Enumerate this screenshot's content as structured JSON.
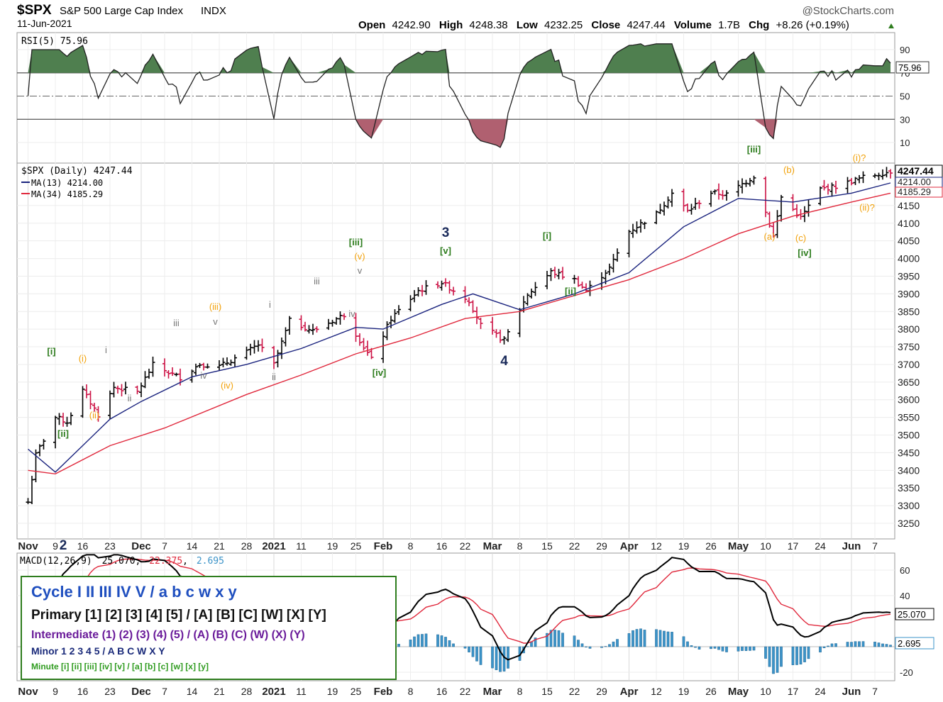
{
  "header": {
    "symbol": "$SPX",
    "name": "S&P 500 Large Cap Index",
    "exchange": "INDX",
    "date": "11-Jun-2021",
    "watermark": "@StockCharts.com",
    "open_label": "Open",
    "open": "4242.90",
    "high_label": "High",
    "high": "4248.38",
    "low_label": "Low",
    "low": "4232.25",
    "close_label": "Close",
    "close": "4247.44",
    "volume_label": "Volume",
    "volume": "1.7B",
    "chg_label": "Chg",
    "chg": "+8.26 (+0.19%)"
  },
  "colors": {
    "up_bar": "#000000",
    "down_bar": "#cc1144",
    "ma13": "#1a237e",
    "ma34": "#e0283c",
    "rsi_fill": "#4f7f4f",
    "macd_hist": "#3b93c8",
    "green_label": "#2e7d1e",
    "gray_label": "#777777",
    "orange_label": "#f2a20c",
    "navy_label": "#1a2a5a"
  },
  "rsi": {
    "label": "RSI(5) 75.96",
    "value": "75.96",
    "levels": [
      "90",
      "70",
      "50",
      "30",
      "10"
    ]
  },
  "price": {
    "label": "$SPX (Daily) 4247.44",
    "ma13_label": "MA(13) 4214.00",
    "ma34_label": "MA(34) 4185.29",
    "tag_close": "4247.44",
    "tag_ma13": "4214.00",
    "tag_ma34": "4185.29",
    "y_ticks": [
      "4150",
      "4100",
      "4050",
      "4000",
      "3950",
      "3900",
      "3850",
      "3800",
      "3750",
      "3700",
      "3650",
      "3600",
      "3550",
      "3500",
      "3450",
      "3400",
      "3350",
      "3300",
      "3250"
    ]
  },
  "x_labels": [
    "Nov",
    "9",
    "16",
    "23",
    "Dec",
    "7",
    "14",
    "21",
    "28",
    "2021",
    "11",
    "19",
    "25",
    "Feb",
    "8",
    "16",
    "22",
    "Mar",
    "8",
    "15",
    "22",
    "29",
    "Apr",
    "12",
    "19",
    "26",
    "May",
    "10",
    "17",
    "24",
    "Jun",
    "7"
  ],
  "macd": {
    "label_name": "MACD(12,26,9)",
    "v1": "25.070",
    "v2": "22.375",
    "v3": "2.695",
    "tag1": "25.070",
    "tag2": "2.695",
    "y_ticks": [
      "60",
      "40",
      "-20"
    ]
  },
  "waves": [
    {
      "t": "2",
      "c": "navy"
    },
    {
      "t": "[i]",
      "c": "green"
    },
    {
      "t": "[ii]",
      "c": "green"
    },
    {
      "t": "(i)",
      "c": "orange"
    },
    {
      "t": "(ii)",
      "c": "orange"
    },
    {
      "t": "i",
      "c": "gray"
    },
    {
      "t": "ii",
      "c": "gray"
    },
    {
      "t": "iii",
      "c": "gray"
    },
    {
      "t": "iv",
      "c": "gray"
    },
    {
      "t": "(iii)",
      "c": "orange"
    },
    {
      "t": "v",
      "c": "gray"
    },
    {
      "t": "(iv)",
      "c": "orange"
    },
    {
      "t": "i",
      "c": "gray"
    },
    {
      "t": "ii",
      "c": "gray"
    },
    {
      "t": "iii",
      "c": "gray"
    },
    {
      "t": "iv",
      "c": "gray"
    },
    {
      "t": "[iii]",
      "c": "green"
    },
    {
      "t": "(v)",
      "c": "orange"
    },
    {
      "t": "v",
      "c": "gray"
    },
    {
      "t": "[iv]",
      "c": "green"
    },
    {
      "t": "3",
      "c": "navy"
    },
    {
      "t": "[v]",
      "c": "green"
    },
    {
      "t": "4",
      "c": "navy"
    },
    {
      "t": "[i]",
      "c": "green"
    },
    {
      "t": "[ii]",
      "c": "green"
    },
    {
      "t": "[iii]",
      "c": "green"
    },
    {
      "t": "(b)",
      "c": "orange"
    },
    {
      "t": "(a)",
      "c": "orange"
    },
    {
      "t": "(c)",
      "c": "orange"
    },
    {
      "t": "[iv]",
      "c": "green"
    },
    {
      "t": "(i)?",
      "c": "orange"
    },
    {
      "t": "(ii)?",
      "c": "orange"
    }
  ],
  "legend": {
    "cycle": "Cycle I II III IV V / a b c w x y",
    "primary": "Primary [1] [2] [3] [4] [5] / [A] [B] [C] [W] [X] [Y]",
    "intermediate": "Intermediate (1) (2) (3) (4) (5) / (A) (B) (C) (W) (X) (Y)",
    "minor": "Minor 1 2 3 4 5 / A B C W X Y",
    "minute": "Minute [i] [ii] [iii] [iv] [v] / [a] [b] [c] [w] [x] [y]"
  },
  "chart_data": {
    "type": "line",
    "title": "$SPX S&P 500 Large Cap Index INDX",
    "x_range": [
      "2020-11-02",
      "2021-06-11"
    ],
    "ylim": [
      3220,
      4270
    ],
    "series": [
      {
        "name": "$SPX (Daily)",
        "points": [
          [
            "2020-11-02",
            3310
          ],
          [
            "2020-11-04",
            3444
          ],
          [
            "2020-11-09",
            3550
          ],
          [
            "2020-11-12",
            3537
          ],
          [
            "2020-11-16",
            3626
          ],
          [
            "2020-11-20",
            3557
          ],
          [
            "2020-11-24",
            3635
          ],
          [
            "2020-11-30",
            3622
          ],
          [
            "2020-12-04",
            3699
          ],
          [
            "2020-12-09",
            3672
          ],
          [
            "2020-12-11",
            3663
          ],
          [
            "2020-12-16",
            3701
          ],
          [
            "2020-12-21",
            3694
          ],
          [
            "2020-12-28",
            3735
          ],
          [
            "2020-12-31",
            3756
          ],
          [
            "2021-01-04",
            3700
          ],
          [
            "2021-01-08",
            3824
          ],
          [
            "2021-01-14",
            3795
          ],
          [
            "2021-01-22",
            3841
          ],
          [
            "2021-01-27",
            3750
          ],
          [
            "2021-01-29",
            3714
          ],
          [
            "2021-02-03",
            3830
          ],
          [
            "2021-02-10",
            3909
          ],
          [
            "2021-02-16",
            3932
          ],
          [
            "2021-02-23",
            3881
          ],
          [
            "2021-02-26",
            3811
          ],
          [
            "2021-03-04",
            3768
          ],
          [
            "2021-03-10",
            3898
          ],
          [
            "2021-03-16",
            3962
          ],
          [
            "2021-03-22",
            3940
          ],
          [
            "2021-03-25",
            3909
          ],
          [
            "2021-03-31",
            3973
          ],
          [
            "2021-04-05",
            4077
          ],
          [
            "2021-04-12",
            4127
          ],
          [
            "2021-04-16",
            4185
          ],
          [
            "2021-04-20",
            4134
          ],
          [
            "2021-04-26",
            4187
          ],
          [
            "2021-04-30",
            4181
          ],
          [
            "2021-05-07",
            4233
          ],
          [
            "2021-05-12",
            4063
          ],
          [
            "2021-05-14",
            4174
          ],
          [
            "2021-05-19",
            4115
          ],
          [
            "2021-05-24",
            4197
          ],
          [
            "2021-05-28",
            4204
          ],
          [
            "2021-06-04",
            4230
          ],
          [
            "2021-06-11",
            4247
          ]
        ]
      },
      {
        "name": "MA(13)",
        "points": [
          [
            "2020-11-02",
            3460
          ],
          [
            "2020-11-09",
            3395
          ],
          [
            "2020-11-16",
            3470
          ],
          [
            "2020-11-23",
            3545
          ],
          [
            "2020-12-01",
            3595
          ],
          [
            "2020-12-14",
            3665
          ],
          [
            "2020-12-28",
            3700
          ],
          [
            "2021-01-11",
            3745
          ],
          [
            "2021-01-25",
            3805
          ],
          [
            "2021-02-01",
            3800
          ],
          [
            "2021-02-16",
            3870
          ],
          [
            "2021-02-24",
            3900
          ],
          [
            "2021-03-08",
            3855
          ],
          [
            "2021-03-22",
            3900
          ],
          [
            "2021-04-05",
            3960
          ],
          [
            "2021-04-19",
            4090
          ],
          [
            "2021-05-03",
            4170
          ],
          [
            "2021-05-17",
            4160
          ],
          [
            "2021-06-01",
            4185
          ],
          [
            "2021-06-11",
            4214
          ]
        ]
      },
      {
        "name": "MA(34)",
        "points": [
          [
            "2020-11-02",
            3400
          ],
          [
            "2020-11-09",
            3390
          ],
          [
            "2020-11-23",
            3470
          ],
          [
            "2020-12-07",
            3520
          ],
          [
            "2020-12-28",
            3615
          ],
          [
            "2021-01-11",
            3670
          ],
          [
            "2021-01-25",
            3730
          ],
          [
            "2021-02-08",
            3775
          ],
          [
            "2021-02-22",
            3830
          ],
          [
            "2021-03-08",
            3850
          ],
          [
            "2021-03-22",
            3895
          ],
          [
            "2021-04-05",
            3940
          ],
          [
            "2021-04-19",
            4000
          ],
          [
            "2021-05-03",
            4070
          ],
          [
            "2021-05-17",
            4120
          ],
          [
            "2021-06-01",
            4160
          ],
          [
            "2021-06-11",
            4185
          ]
        ]
      }
    ],
    "indicators": {
      "rsi5_last": 75.96,
      "macd_last": 25.07,
      "signal_last": 22.375,
      "histogram_last": 2.695
    }
  }
}
